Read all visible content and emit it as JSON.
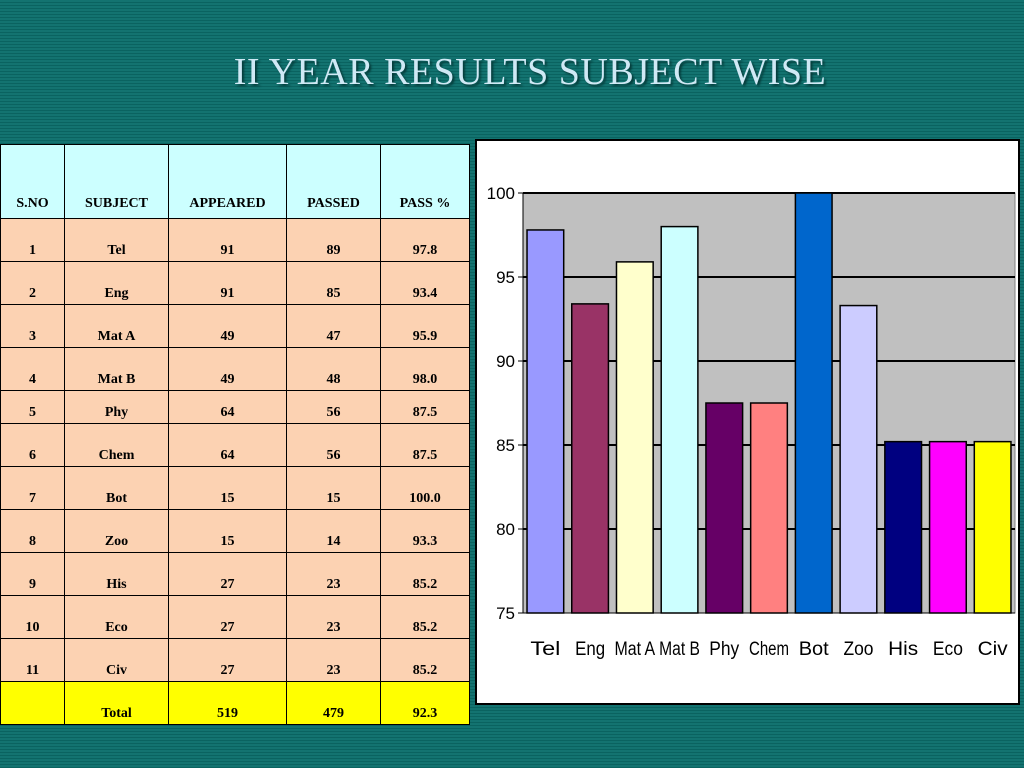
{
  "title": "II YEAR RESULTS SUBJECT WISE",
  "table": {
    "headers": [
      "S.NO",
      "SUBJECT",
      "APPEARED",
      "PASSED",
      "PASS %"
    ],
    "rows": [
      [
        "1",
        "Tel",
        "91",
        "89",
        "97.8"
      ],
      [
        "2",
        "Eng",
        "91",
        "85",
        "93.4"
      ],
      [
        "3",
        "Mat A",
        "49",
        "47",
        "95.9"
      ],
      [
        "4",
        "Mat B",
        "49",
        "48",
        "98.0"
      ],
      [
        "5",
        "Phy",
        "64",
        "56",
        "87.5"
      ],
      [
        "6",
        "Chem",
        "64",
        "56",
        "87.5"
      ],
      [
        "7",
        "Bot",
        "15",
        "15",
        "100.0"
      ],
      [
        "8",
        "Zoo",
        "15",
        "14",
        "93.3"
      ],
      [
        "9",
        "His",
        "27",
        "23",
        "85.2"
      ],
      [
        "10",
        "Eco",
        "27",
        "23",
        "85.2"
      ],
      [
        "11",
        "Civ",
        "27",
        "23",
        "85.2"
      ]
    ],
    "total": [
      "",
      "Total",
      "519",
      "479",
      "92.3"
    ]
  },
  "chart_data": {
    "type": "bar",
    "categories": [
      "Tel",
      "Eng",
      "Mat A",
      "Mat B",
      "Phy",
      "Chem",
      "Bot",
      "Zoo",
      "His",
      "Eco",
      "Civ"
    ],
    "values": [
      97.8,
      93.4,
      95.9,
      98.0,
      87.5,
      87.5,
      100.0,
      93.3,
      85.2,
      85.2,
      85.2
    ],
    "colors": [
      "#9999ff",
      "#993366",
      "#ffffcc",
      "#ccffff",
      "#660066",
      "#ff8080",
      "#0066cc",
      "#ccccff",
      "#000080",
      "#ff00ff",
      "#ffff00"
    ],
    "ylim": [
      75,
      100
    ],
    "yticks": [
      "75",
      "80",
      "85",
      "90",
      "95",
      "100"
    ],
    "grid": true,
    "plot_background": "#c0c0c0",
    "legend": false,
    "title": "",
    "xlabel": "",
    "ylabel": ""
  }
}
